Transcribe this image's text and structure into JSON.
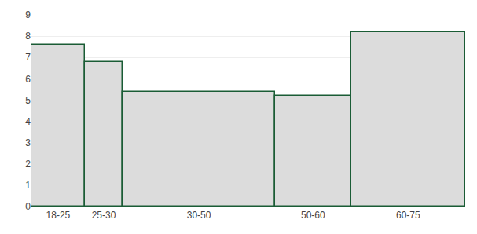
{
  "chart_data": {
    "type": "histogram",
    "bins": [
      18,
      25,
      30,
      50,
      60,
      75
    ],
    "values": [
      7.6,
      6.8,
      5.4,
      5.2,
      8.2
    ],
    "color": "#dcdcdc",
    "xlim": [
      18,
      75
    ],
    "xticks": [
      {
        "value": 21.5,
        "label": "18-25"
      },
      {
        "value": 27.5,
        "label": "25-30"
      },
      {
        "value": 40.0,
        "label": "30-50"
      },
      {
        "value": 55.0,
        "label": "50-60"
      },
      {
        "value": 67.5,
        "label": "60-75"
      }
    ],
    "ylim": [
      0,
      9
    ],
    "yticks": [
      0,
      1,
      2,
      3,
      4,
      5,
      6,
      7,
      8,
      9
    ],
    "grid": true
  }
}
